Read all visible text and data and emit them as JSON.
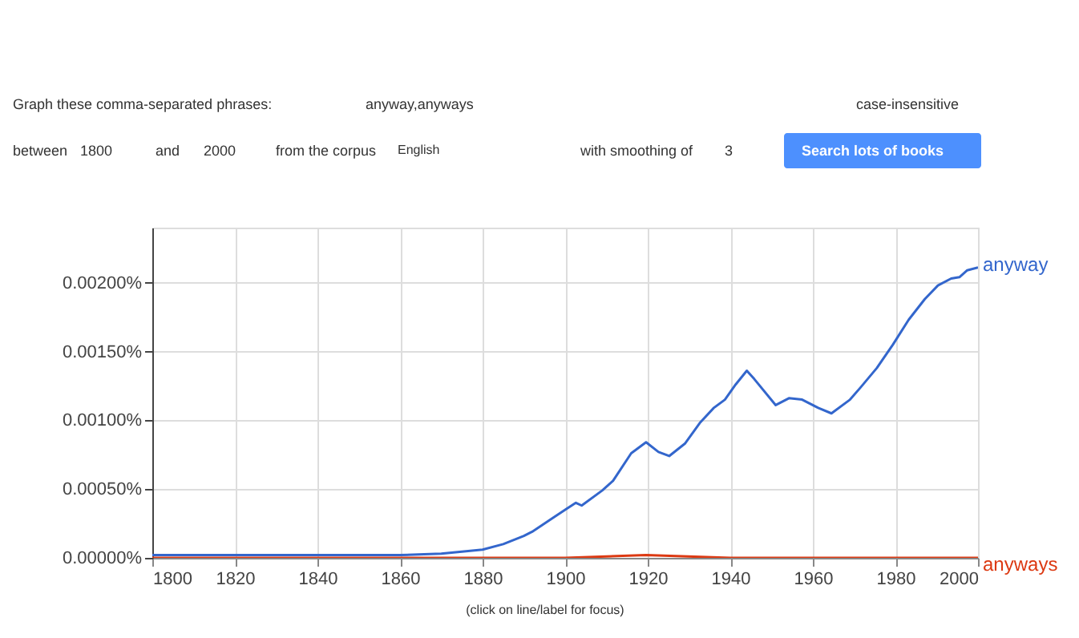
{
  "chart_data": {
    "type": "line",
    "x": [
      1800,
      1820,
      1840,
      1860,
      1870,
      1880,
      1885,
      1890,
      1892,
      1897,
      1900,
      1902.6,
      1904,
      1909,
      1911.6,
      1916,
      1919.6,
      1922.6,
      1925.2,
      1929,
      1932.6,
      1936,
      1938.7,
      1941.3,
      1944,
      1945.8,
      1951,
      1954.2,
      1957.4,
      1961.3,
      1964.5,
      1969,
      1971.6,
      1975.5,
      1979.4,
      1983.2,
      1987.1,
      1990.3,
      1993.5,
      1995.5,
      1997.4,
      2000
    ],
    "series": [
      {
        "name": "anyway",
        "color": "#3366cc",
        "values": [
          2e-05,
          2e-05,
          2e-05,
          2e-05,
          3e-05,
          6e-05,
          0.0001,
          0.00016,
          0.00019,
          0.00029,
          0.00035,
          0.0004,
          0.00038,
          0.00049,
          0.00056,
          0.00076,
          0.00084,
          0.00077,
          0.00074,
          0.00083,
          0.00098,
          0.00109,
          0.00115,
          0.00126,
          0.00136,
          0.0013,
          0.00111,
          0.00116,
          0.00115,
          0.00109,
          0.00105,
          0.00115,
          0.00124,
          0.00138,
          0.00155,
          0.00173,
          0.00188,
          0.00198,
          0.00203,
          0.00204,
          0.00209,
          0.00211
        ]
      },
      {
        "name": "anyways",
        "color": "#dc3912",
        "x": [
          1800,
          1900,
          1919.6,
          1940,
          2000
        ],
        "values": [
          0,
          0,
          2e-05,
          0,
          0
        ]
      }
    ],
    "xlim": [
      1800,
      2000
    ],
    "xticks": [
      1800,
      1820,
      1840,
      1860,
      1880,
      1900,
      1920,
      1940,
      1960,
      1980,
      2000
    ],
    "ylim": [
      0,
      0.0024
    ],
    "yticks": [
      {
        "value": 0,
        "label": "0.00000%"
      },
      {
        "value": 0.0005,
        "label": "0.00050%"
      },
      {
        "value": 0.001,
        "label": "0.00100%"
      },
      {
        "value": 0.0015,
        "label": "0.00150%"
      },
      {
        "value": 0.002,
        "label": "0.00200%"
      }
    ],
    "grid": true,
    "legend": false,
    "marker": "none",
    "line_style": "solid",
    "annotations": [
      "Graph these comma-separated phrases:",
      "anyway,anyways",
      "case-insensitive",
      "between",
      "1800",
      "and",
      "2000",
      "from the corpus",
      "English",
      "with smoothing of",
      "3",
      "Search lots of books",
      "(click on line/label for focus)"
    ]
  }
}
